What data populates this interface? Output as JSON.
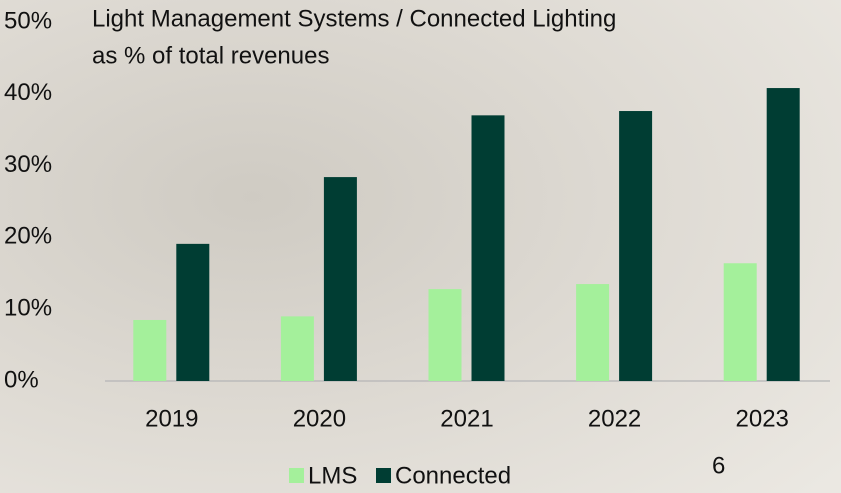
{
  "chart_data": {
    "type": "bar",
    "title": [
      "Light Management Systems / Connected Lighting",
      "as % of total revenues"
    ],
    "categories": [
      "2019",
      "2020",
      "2021",
      "2022",
      "2023"
    ],
    "series": [
      {
        "name": "LMS",
        "color": "#a4f09b",
        "values": [
          8.5,
          9.0,
          12.8,
          13.5,
          16.4
        ]
      },
      {
        "name": "Connected",
        "color": "#003d33",
        "values": [
          19.1,
          28.4,
          37.0,
          37.6,
          40.8
        ]
      }
    ],
    "ylim": [
      0,
      50
    ],
    "yticks": [
      {
        "value": 0,
        "label": "0%"
      },
      {
        "value": 10,
        "label": "10%"
      },
      {
        "value": 20,
        "label": "20%"
      },
      {
        "value": 30,
        "label": "30%"
      },
      {
        "value": 40,
        "label": "40%"
      },
      {
        "value": 50,
        "label": "50%"
      }
    ],
    "grid": false,
    "legend": "bottom"
  },
  "slide_number": 6
}
